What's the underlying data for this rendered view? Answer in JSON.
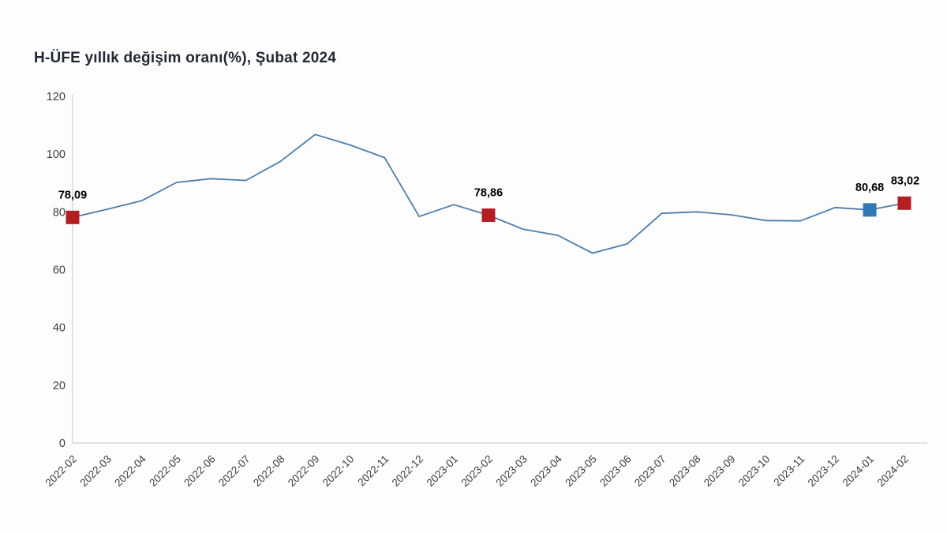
{
  "chart_data": {
    "type": "line",
    "title": "H-ÜFE yıllık değişim oranı(%), Şubat 2024",
    "x": [
      "2022-02",
      "2022-03",
      "2022-04",
      "2022-05",
      "2022-06",
      "2022-07",
      "2022-08",
      "2022-09",
      "2022-10",
      "2022-11",
      "2022-12",
      "2023-01",
      "2023-02",
      "2023-03",
      "2023-04",
      "2023-05",
      "2023-06",
      "2023-07",
      "2023-08",
      "2023-09",
      "2023-10",
      "2023-11",
      "2023-12",
      "2024-01",
      "2024-02"
    ],
    "values": [
      78.09,
      80.9,
      83.9,
      90.2,
      91.5,
      90.9,
      97.5,
      106.8,
      103.2,
      98.8,
      78.4,
      82.5,
      78.86,
      74.0,
      71.9,
      65.7,
      68.9,
      79.5,
      80.0,
      79.0,
      77.0,
      76.9,
      81.5,
      80.68,
      83.02
    ],
    "ylim": [
      0,
      120
    ],
    "yticks": [
      0,
      20,
      40,
      60,
      80,
      100,
      120
    ],
    "grid": false,
    "legend_position": "none",
    "xlabel": "",
    "ylabel": "",
    "line_color": "#4d7dab",
    "axis_color": "#d6d6d6",
    "tick_label_color": "#3d3d3d",
    "data_label_color": "#000000",
    "highlights": [
      {
        "index": 0,
        "month": "2022-02",
        "value": 78.09,
        "label": "78,09",
        "color": "#b51f24"
      },
      {
        "index": 12,
        "month": "2023-02",
        "value": 78.86,
        "label": "78,86",
        "color": "#b51f24"
      },
      {
        "index": 23,
        "month": "2024-01",
        "value": 80.68,
        "label": "80,68",
        "color": "#2f7ab6"
      },
      {
        "index": 24,
        "month": "2024-02",
        "value": 83.02,
        "label": "83,02",
        "color": "#b51f24"
      }
    ]
  }
}
